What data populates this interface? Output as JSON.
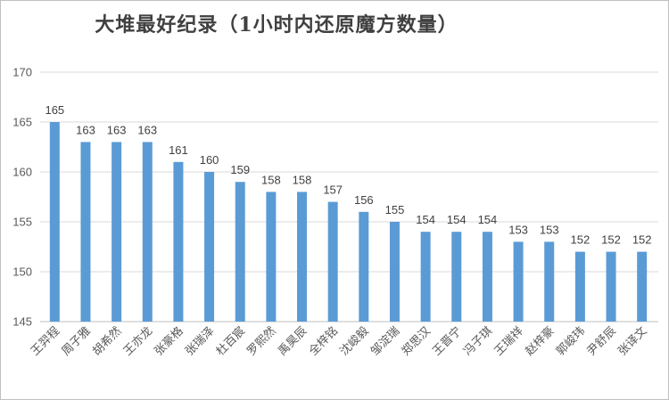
{
  "chart_data": {
    "type": "bar",
    "title": "大堆最好纪录（1小时内还原魔方数量）",
    "categories": [
      "王羿程",
      "周子雅",
      "胡希然",
      "王亦龙",
      "张豪格",
      "张瑞泽",
      "杜百宸",
      "罗熙然",
      "禹昊辰",
      "全梓铭",
      "沈峻毅",
      "邹淀瑞",
      "郑思汉",
      "王晋宁",
      "冯子琪",
      "王瑞祥",
      "赵梓豪",
      "郭峻玮",
      "尹舒辰",
      "张译文"
    ],
    "values": [
      165,
      163,
      163,
      163,
      161,
      160,
      159,
      158,
      158,
      157,
      156,
      155,
      154,
      154,
      154,
      153,
      153,
      152,
      152,
      152
    ],
    "ylim": [
      145,
      170
    ],
    "yticks": [
      145,
      150,
      155,
      160,
      165,
      170
    ],
    "grid": true,
    "legend": "none",
    "bar_color": "#5b9bd5",
    "grid_color": "#d9d9d9",
    "axis_color": "#bfbfbf"
  }
}
